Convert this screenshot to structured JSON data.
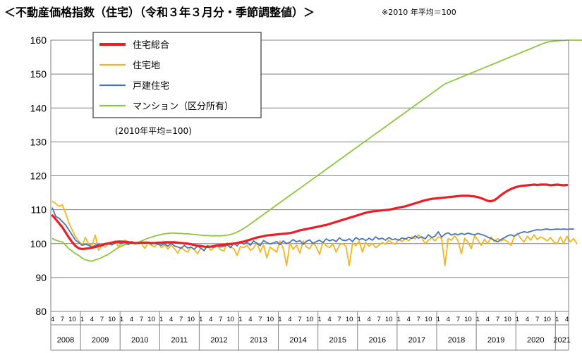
{
  "header": {
    "title": "＜不動産価格指数（住宅）（令和３年３月分・季節調整値）＞",
    "note": "※2010 年平均＝100"
  },
  "chart_data": {
    "type": "line",
    "title": "不動産価格指数（住宅）（令和３年３月分・季節調整値）",
    "ylim": [
      80,
      160
    ],
    "yticks": [
      80,
      90,
      100,
      110,
      120,
      130,
      140,
      150,
      160
    ],
    "grid": true,
    "legend_position": "top-left",
    "base_label": "(2010年平均=100)",
    "year_labels": [
      "2008",
      "2009",
      "2010",
      "2011",
      "2012",
      "2013",
      "2014",
      "2015",
      "2016",
      "2017",
      "2018",
      "2019",
      "2020",
      "2021"
    ],
    "month_labels": [
      "1",
      "4",
      "7",
      "10"
    ],
    "x": {
      "start": "2008-04",
      "end": "2021-03",
      "frequency": "monthly"
    },
    "series": [
      {
        "name": "住宅総合",
        "color": "#ee1c25",
        "values": [
          108.3,
          107.2,
          106.0,
          104.8,
          103.3,
          101.8,
          100.4,
          99.3,
          98.6,
          98.4,
          98.5,
          98.6,
          98.8,
          99.0,
          99.3,
          99.6,
          99.9,
          100.1,
          100.3,
          100.5,
          100.6,
          100.6,
          100.5,
          100.4,
          100.3,
          100.2,
          100.2,
          100.3,
          100.3,
          100.3,
          100.2,
          100.2,
          100.3,
          100.3,
          100.4,
          100.4,
          100.4,
          100.4,
          100.3,
          100.2,
          100.1,
          100.0,
          99.8,
          99.6,
          99.4,
          99.3,
          99.1,
          99.0,
          99.1,
          99.3,
          99.5,
          99.6,
          99.7,
          99.8,
          99.9,
          100.0,
          100.2,
          100.4,
          100.6,
          100.9,
          101.2,
          101.5,
          101.8,
          102.0,
          102.2,
          102.4,
          102.5,
          102.6,
          102.7,
          102.8,
          102.9,
          103.0,
          103.1,
          103.3,
          103.6,
          103.9,
          104.1,
          104.3,
          104.5,
          104.7,
          104.9,
          105.1,
          105.3,
          105.5,
          105.8,
          106.1,
          106.4,
          106.7,
          107.0,
          107.3,
          107.6,
          107.9,
          108.2,
          108.5,
          108.8,
          109.1,
          109.3,
          109.5,
          109.6,
          109.7,
          109.8,
          109.9,
          110.0,
          110.2,
          110.4,
          110.6,
          110.8,
          111.0,
          111.3,
          111.6,
          111.9,
          112.2,
          112.5,
          112.8,
          113.0,
          113.2,
          113.3,
          113.4,
          113.5,
          113.6,
          113.7,
          113.8,
          113.9,
          114.0,
          114.1,
          114.1,
          114.1,
          114.0,
          113.9,
          113.7,
          113.4,
          113.0,
          112.6,
          112.5,
          112.8,
          113.5,
          114.3,
          115.0,
          115.6,
          116.1,
          116.5,
          116.8,
          117.0,
          117.1,
          117.2,
          117.3,
          117.4,
          117.3,
          117.4,
          117.4,
          117.4,
          117.2,
          117.3,
          117.4,
          117.3,
          117.2,
          117.3
        ]
      },
      {
        "name": "住宅地",
        "color": "#f6b51e",
        "values": [
          112.5,
          111.8,
          111.0,
          111.4,
          109.0,
          106.0,
          104.0,
          102.0,
          100.8,
          99.5,
          101.8,
          99.8,
          99.5,
          102.5,
          98.0,
          99.6,
          99.0,
          100.0,
          99.8,
          100.8,
          99.0,
          100.2,
          101.0,
          100.6,
          100.3,
          99.8,
          100.5,
          100.1,
          98.6,
          100.2,
          99.5,
          99.0,
          100.3,
          98.8,
          99.6,
          98.4,
          99.5,
          98.5,
          97.2,
          99.0,
          98.0,
          97.5,
          99.0,
          98.2,
          97.0,
          98.8,
          97.8,
          99.5,
          98.0,
          98.9,
          99.3,
          98.2,
          97.8,
          100.3,
          99.1,
          98.5,
          96.5,
          99.2,
          98.8,
          99.5,
          98.0,
          98.7,
          100.3,
          97.5,
          99.6,
          95.8,
          99.0,
          98.2,
          97.5,
          100.8,
          98.5,
          93.5,
          100.2,
          98.3,
          99.6,
          97.2,
          100.8,
          99.0,
          98.5,
          100.3,
          99.0,
          96.8,
          100.5,
          99.4,
          98.8,
          100.0,
          97.5,
          99.5,
          100.0,
          99.2,
          93.5,
          100.2,
          99.4,
          100.8,
          97.5,
          100.4,
          99.2,
          100.1,
          98.8,
          99.5,
          100.3,
          99.8,
          101.0,
          100.2,
          99.8,
          101.3,
          100.6,
          101.6,
          100.8,
          102.0,
          101.4,
          102.6,
          101.7,
          100.0,
          101.0,
          101.8,
          100.8,
          102.0,
          101.5,
          93.5,
          101.5,
          101.0,
          102.3,
          100.8,
          97.0,
          101.6,
          100.4,
          98.5,
          102.4,
          101.0,
          99.5,
          101.3,
          100.0,
          102.0,
          100.5,
          101.5,
          100.8,
          101.2,
          100.6,
          99.5,
          102.0,
          103.0,
          101.5,
          100.5,
          102.2,
          101.0,
          102.6,
          101.2,
          102.0,
          101.5,
          100.8,
          101.8,
          100.5,
          100.0,
          102.0,
          100.0,
          102.2,
          100.5,
          101.5,
          100.0
        ]
      },
      {
        "name": "戸建住宅",
        "color": "#4a74b8",
        "values": [
          110.5,
          108.0,
          107.5,
          106.5,
          105.5,
          104.0,
          102.5,
          101.0,
          100.3,
          99.5,
          99.8,
          99.5,
          99.0,
          99.5,
          99.8,
          99.3,
          99.8,
          100.0,
          99.6,
          100.2,
          100.4,
          100.0,
          100.5,
          99.7,
          100.6,
          100.2,
          100.1,
          100.3,
          100.0,
          100.4,
          99.9,
          100.1,
          99.8,
          99.5,
          100.0,
          99.2,
          100.1,
          99.3,
          99.0,
          98.6,
          99.5,
          98.7,
          99.0,
          98.3,
          99.3,
          98.6,
          98.0,
          99.4,
          99.0,
          98.9,
          99.3,
          99.0,
          99.2,
          99.6,
          98.8,
          100.2,
          99.3,
          100.6,
          99.8,
          100.4,
          99.5,
          100.8,
          100.1,
          99.4,
          100.9,
          100.3,
          99.9,
          100.2,
          100.6,
          99.7,
          100.8,
          100.0,
          100.4,
          101.2,
          100.5,
          100.9,
          99.8,
          100.7,
          101.1,
          100.0,
          100.6,
          101.0,
          100.3,
          101.4,
          100.8,
          101.2,
          100.6,
          101.7,
          101.0,
          100.9,
          101.4,
          100.6,
          101.8,
          101.2,
          101.5,
          100.9,
          101.6,
          101.0,
          102.0,
          101.3,
          101.6,
          101.0,
          101.8,
          101.2,
          101.4,
          101.0,
          101.7,
          101.3,
          101.9,
          101.5,
          102.3,
          101.6,
          102.0,
          101.4,
          102.6,
          101.8,
          102.2,
          103.5,
          101.9,
          102.8,
          103.2,
          102.5,
          102.9,
          102.6,
          103.0,
          102.7,
          103.1,
          102.8,
          102.6,
          103.0,
          102.7,
          102.4,
          101.9,
          101.5,
          101.0,
          100.5,
          101.2,
          101.7,
          102.3,
          102.6,
          102.2,
          102.8,
          103.2,
          103.5,
          103.3,
          103.6,
          103.9,
          104.1,
          104.0,
          104.2,
          104.3,
          104.1,
          104.2,
          104.3,
          104.2,
          104.3,
          104.2,
          104.3,
          104.3
        ]
      },
      {
        "name": "マンション（区分所有）",
        "color": "#8dc63f",
        "values": [
          101.5,
          101.0,
          100.7,
          100.5,
          99.5,
          98.5,
          97.8,
          97.0,
          96.5,
          95.7,
          95.2,
          95.0,
          94.8,
          95.2,
          95.5,
          95.9,
          96.4,
          96.9,
          97.5,
          98.2,
          98.8,
          99.3,
          99.7,
          99.9,
          100.0,
          100.1,
          100.3,
          100.8,
          101.2,
          101.6,
          101.9,
          102.2,
          102.5,
          102.7,
          102.9,
          103.0,
          103.1,
          103.1,
          103.0,
          103.0,
          102.9,
          102.9,
          102.8,
          102.7,
          102.6,
          102.5,
          102.4,
          102.4,
          102.3,
          102.3,
          102.3,
          102.3,
          102.4,
          102.5,
          102.7,
          103.0,
          103.4,
          103.9,
          104.5,
          105.1,
          105.8,
          106.5,
          107.2,
          107.9,
          108.6,
          109.3,
          110.0,
          110.7,
          111.4,
          112.1,
          112.8,
          113.5,
          114.2,
          114.9,
          115.6,
          116.3,
          117.0,
          117.7,
          118.4,
          119.1,
          119.8,
          120.5,
          121.2,
          121.9,
          122.6,
          123.3,
          124.0,
          124.7,
          125.4,
          126.1,
          126.8,
          127.5,
          128.2,
          128.9,
          129.6,
          130.3,
          131.0,
          131.7,
          132.4,
          133.1,
          133.8,
          134.5,
          135.2,
          135.9,
          136.6,
          137.3,
          138.0,
          138.7,
          139.4,
          140.1,
          140.8,
          141.5,
          142.2,
          142.9,
          143.6,
          144.3,
          145.0,
          145.7,
          146.4,
          147.1,
          147.5,
          147.9,
          148.3,
          148.7,
          149.1,
          149.5,
          149.9,
          150.3,
          150.7,
          151.1,
          151.5,
          151.9,
          152.3,
          152.7,
          153.1,
          153.5,
          153.9,
          154.3,
          154.7,
          155.1,
          155.5,
          155.9,
          156.3,
          156.7,
          157.1,
          157.5,
          157.9,
          158.3,
          158.7,
          159.1,
          159.4,
          159.6,
          159.7,
          159.8,
          159.9,
          159.9,
          160.0,
          160.0,
          160.0,
          160.0,
          160.0,
          160.0
        ]
      }
    ]
  }
}
